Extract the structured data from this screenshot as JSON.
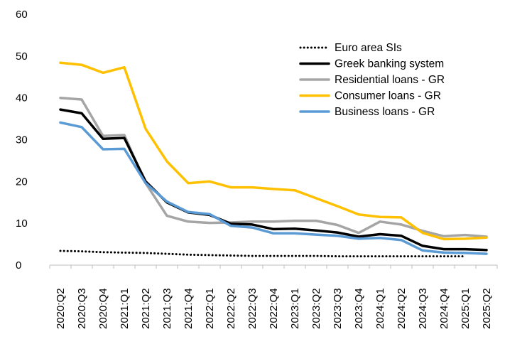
{
  "chart_data": {
    "type": "line",
    "title": "",
    "xlabel": "",
    "ylabel": "",
    "ylim": [
      0,
      60
    ],
    "yticks": [
      0,
      10,
      20,
      30,
      40,
      50,
      60
    ],
    "grid": false,
    "legend_position": "top-right",
    "categories": [
      "2020:Q2",
      "2020:Q3",
      "2020:Q4",
      "2021:Q1",
      "2021:Q2",
      "2021:Q3",
      "2021:Q4",
      "2022:Q1",
      "2022:Q2",
      "2022:Q3",
      "2022:Q4",
      "2023:Q1",
      "2023:Q2",
      "2023:Q3",
      "2023:Q4",
      "2024:Q1",
      "2024:Q2",
      "2024:Q3",
      "2024:Q4",
      "2025:Q1",
      "2025:Q2"
    ],
    "series": [
      {
        "name": "Euro area SIs",
        "color": "#000000",
        "style": "dotted",
        "values": [
          3.4,
          3.3,
          3.1,
          3.0,
          2.9,
          2.7,
          2.5,
          2.4,
          2.3,
          2.2,
          2.2,
          2.2,
          2.2,
          2.1,
          2.1,
          2.1,
          2.1,
          2.1,
          2.1,
          2.1,
          null
        ]
      },
      {
        "name": "Greek banking system",
        "color": "#000000",
        "style": "solid",
        "values": [
          37.2,
          36.3,
          30.2,
          30.4,
          20.0,
          15.0,
          12.6,
          12.0,
          9.9,
          9.7,
          8.6,
          8.7,
          8.3,
          7.8,
          6.8,
          7.4,
          7.0,
          4.6,
          3.8,
          3.8,
          3.6
        ]
      },
      {
        "name": "Residential loans - GR",
        "color": "#A5A5A5",
        "style": "solid",
        "values": [
          40.0,
          39.6,
          30.9,
          31.1,
          19.6,
          11.8,
          10.4,
          10.1,
          10.2,
          10.4,
          10.4,
          10.6,
          10.6,
          9.6,
          7.7,
          10.4,
          9.7,
          8.2,
          6.9,
          7.2,
          6.8
        ]
      },
      {
        "name": "Consumer loans - GR",
        "color": "#FFC000",
        "style": "solid",
        "values": [
          48.4,
          47.9,
          46.0,
          47.3,
          32.6,
          24.8,
          19.6,
          20.0,
          18.6,
          18.6,
          18.2,
          17.9,
          16.0,
          14.1,
          12.1,
          11.5,
          11.4,
          7.7,
          6.2,
          6.3,
          6.6
        ]
      },
      {
        "name": "Business loans - GR",
        "color": "#5B9BD5",
        "style": "solid",
        "values": [
          34.1,
          33.0,
          27.7,
          27.8,
          19.6,
          15.2,
          12.7,
          12.2,
          9.4,
          9.0,
          7.6,
          7.6,
          7.3,
          7.0,
          6.3,
          6.5,
          6.0,
          3.5,
          3.0,
          2.9,
          2.7
        ]
      }
    ]
  }
}
